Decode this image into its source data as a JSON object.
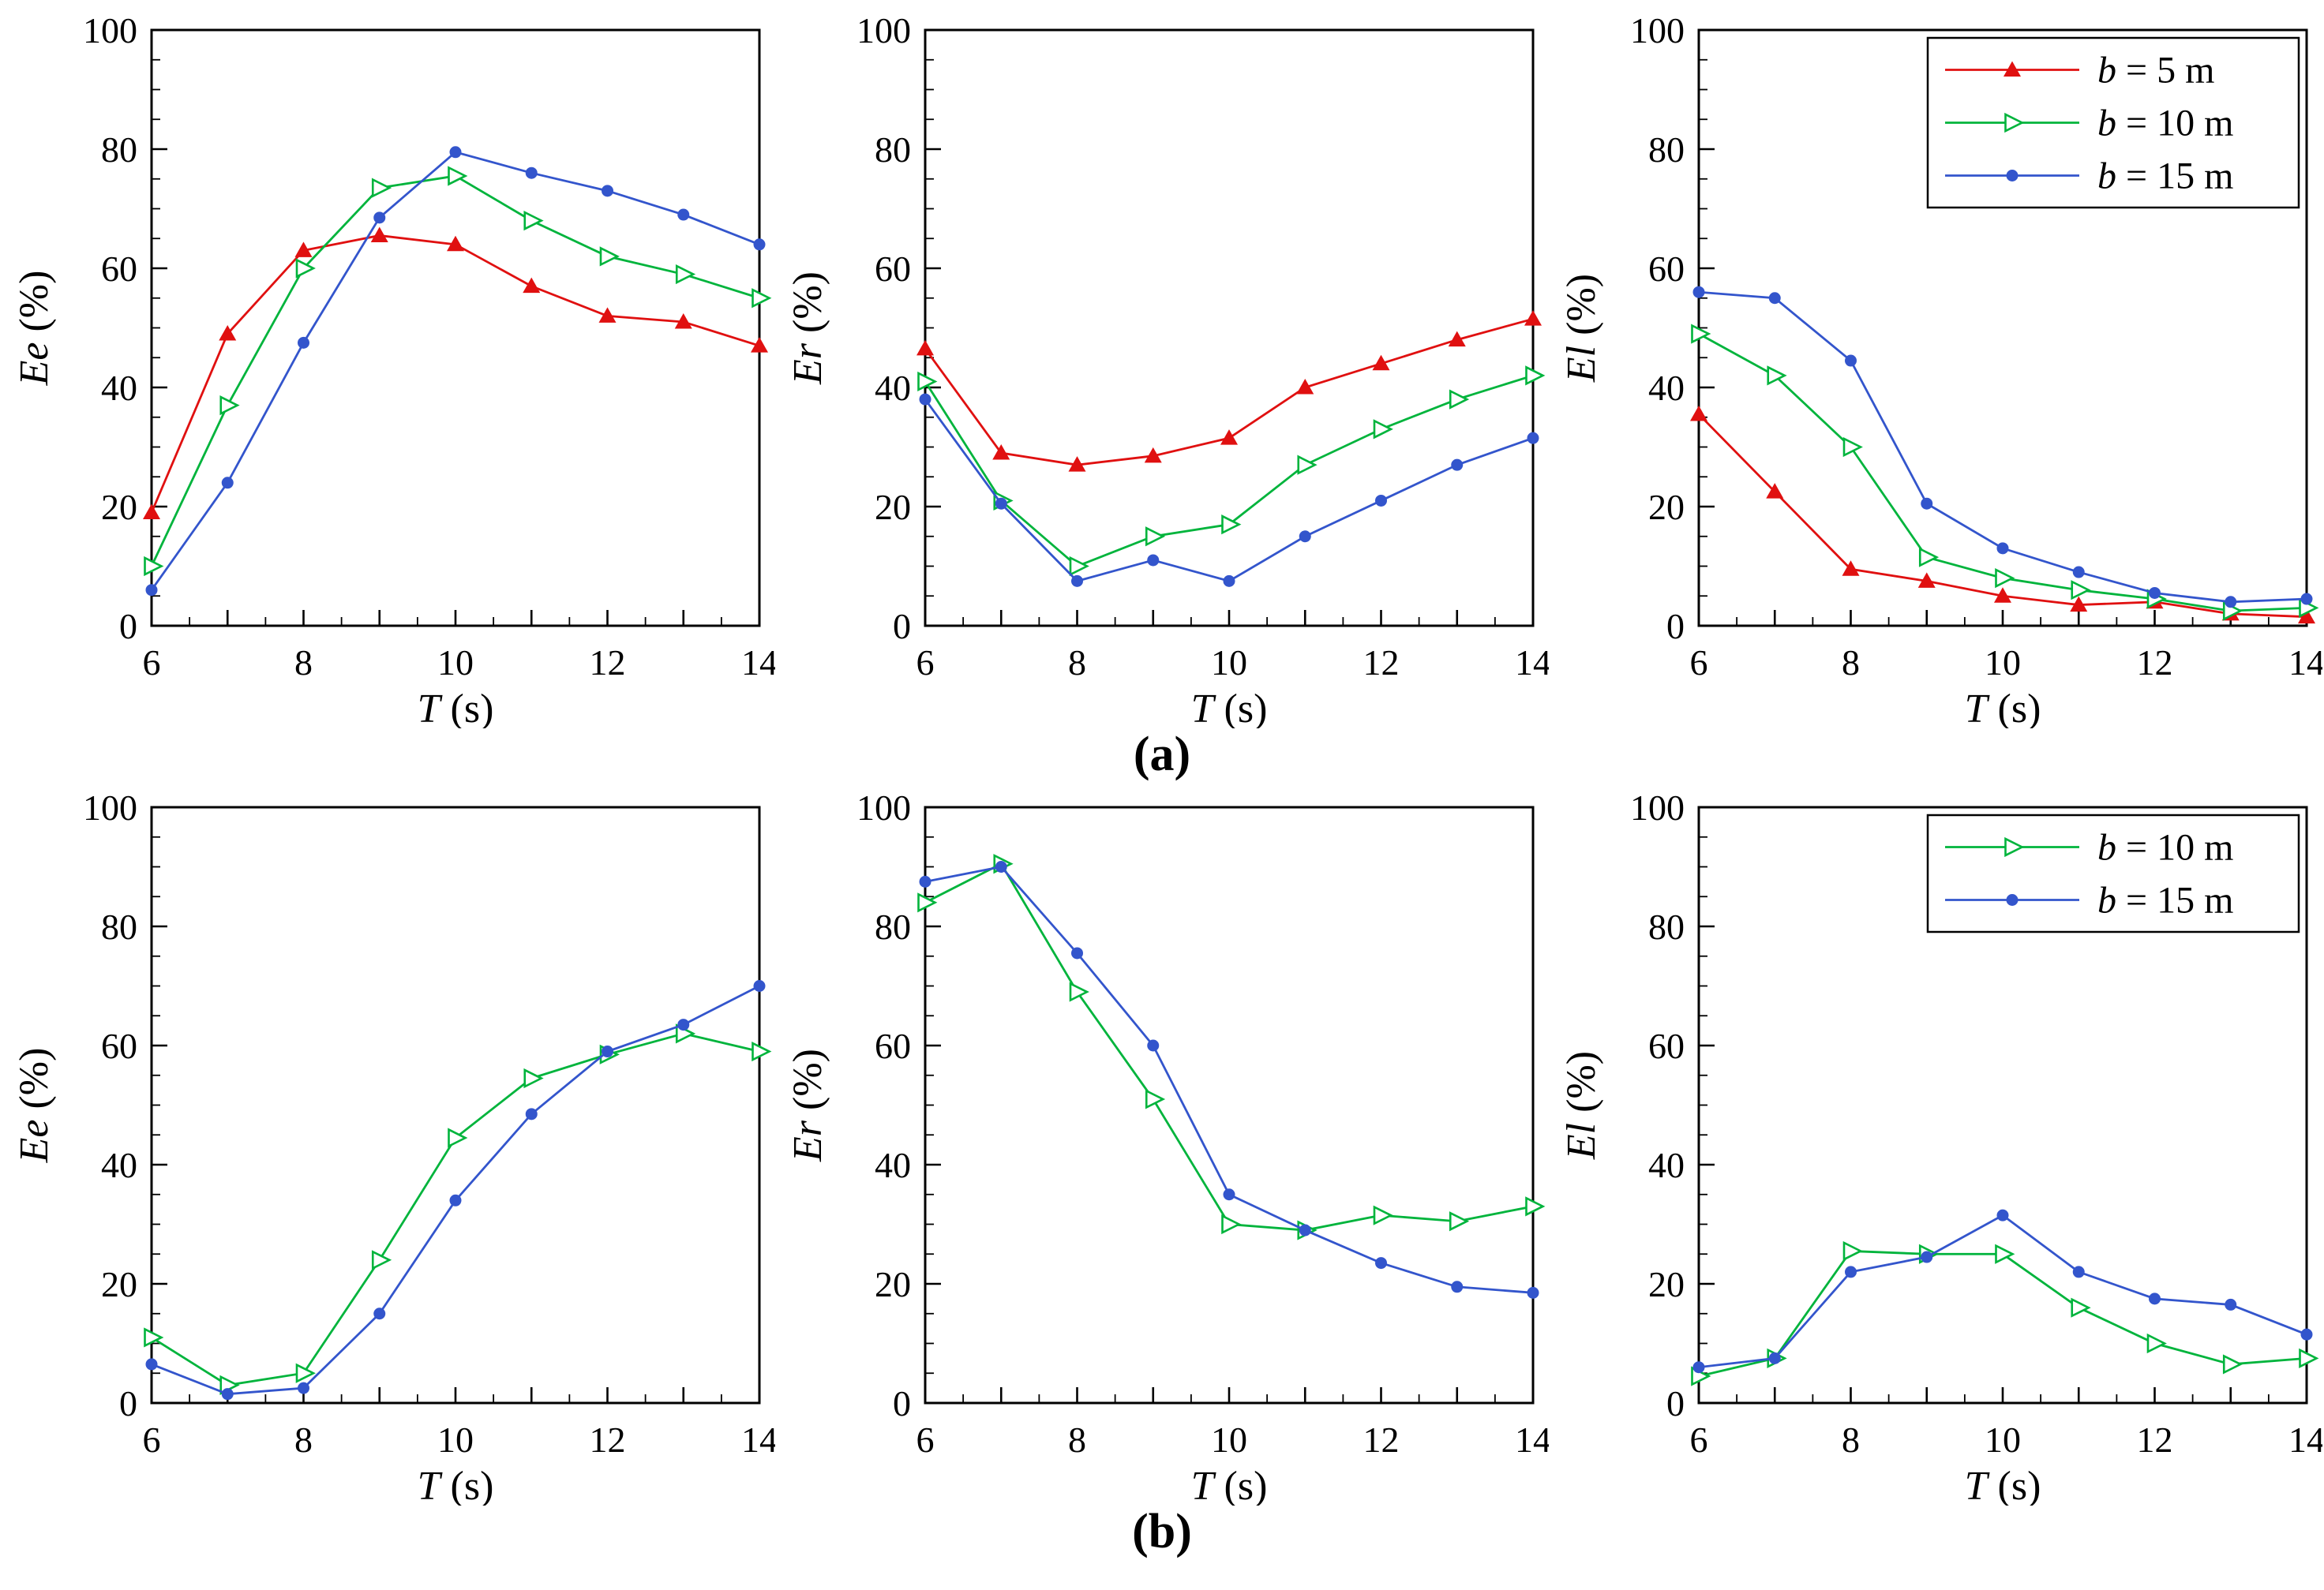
{
  "figure": {
    "panel_labels": {
      "a": "(a)",
      "b": "(b)"
    },
    "background": "#ffffff"
  },
  "axes": {
    "x": {
      "label": "T (s)",
      "label_var": "T",
      "label_unit": "(s)",
      "min": 6,
      "max": 14,
      "major_ticks": [
        6,
        8,
        10,
        12,
        14
      ],
      "minor_step": 0.5
    },
    "y": {
      "min": 0,
      "max": 100,
      "major_ticks": [
        0,
        20,
        40,
        60,
        80,
        100
      ],
      "minor_step": 5
    }
  },
  "styles": {
    "series_colors": {
      "b5": "#E01010",
      "b10": "#00B43C",
      "b15": "#3355CC"
    },
    "frame_color": "#000000"
  },
  "chart_data": [
    {
      "id": "a-ee",
      "panel": "a",
      "type": "line",
      "title": "",
      "xlabel": "T (s)",
      "ylabel": "Ee (%)",
      "ylabel_var": "Ee",
      "ylabel_unit": "(%)",
      "xlim": [
        6,
        14
      ],
      "ylim": [
        0,
        100
      ],
      "legend": false,
      "x": [
        6,
        7,
        8,
        9,
        10,
        11,
        12,
        13,
        14
      ],
      "series": [
        {
          "name": "b = 5 m",
          "color_key": "b5",
          "marker": "triangle-up-filled",
          "values": [
            19,
            49,
            63,
            65.5,
            64,
            57,
            52,
            51,
            47
          ]
        },
        {
          "name": "b = 10 m",
          "color_key": "b10",
          "marker": "triangle-right-open",
          "values": [
            10,
            37,
            60,
            73.5,
            75.5,
            68,
            62,
            59,
            55
          ]
        },
        {
          "name": "b = 15 m",
          "color_key": "b15",
          "marker": "circle-filled",
          "values": [
            6,
            24,
            47.5,
            68.5,
            79.5,
            76,
            73,
            69,
            64
          ]
        }
      ]
    },
    {
      "id": "a-er",
      "panel": "a",
      "type": "line",
      "title": "",
      "xlabel": "T (s)",
      "ylabel": "Er (%)",
      "ylabel_var": "Er",
      "ylabel_unit": "(%)",
      "xlim": [
        6,
        14
      ],
      "ylim": [
        0,
        100
      ],
      "legend": false,
      "x": [
        6,
        7,
        8,
        9,
        10,
        11,
        12,
        13,
        14
      ],
      "series": [
        {
          "name": "b = 5 m",
          "color_key": "b5",
          "marker": "triangle-up-filled",
          "values": [
            46.5,
            29,
            27,
            28.5,
            31.5,
            40,
            44,
            48,
            51.5
          ]
        },
        {
          "name": "b = 10 m",
          "color_key": "b10",
          "marker": "triangle-right-open",
          "values": [
            41,
            21,
            10,
            15,
            17,
            27,
            33,
            38,
            42
          ]
        },
        {
          "name": "b = 15 m",
          "color_key": "b15",
          "marker": "circle-filled",
          "values": [
            38,
            20.5,
            7.5,
            11,
            7.5,
            15,
            21,
            27,
            31.5
          ]
        }
      ]
    },
    {
      "id": "a-el",
      "panel": "a",
      "type": "line",
      "title": "",
      "xlabel": "T (s)",
      "ylabel": "El (%)",
      "ylabel_var": "El",
      "ylabel_unit": "(%)",
      "xlim": [
        6,
        14
      ],
      "ylim": [
        0,
        100
      ],
      "legend": true,
      "legend_position": "top-right",
      "x": [
        6,
        7,
        8,
        9,
        10,
        11,
        12,
        13,
        14
      ],
      "series": [
        {
          "name": "b = 5 m",
          "color_key": "b5",
          "marker": "triangle-up-filled",
          "values": [
            35.5,
            22.5,
            9.5,
            7.5,
            5,
            3.5,
            4,
            2,
            1.5
          ]
        },
        {
          "name": "b = 10 m",
          "color_key": "b10",
          "marker": "triangle-right-open",
          "values": [
            49,
            42,
            30,
            11.5,
            8,
            6,
            4.5,
            2.5,
            3
          ]
        },
        {
          "name": "b = 15 m",
          "color_key": "b15",
          "marker": "circle-filled",
          "values": [
            56,
            55,
            44.5,
            20.5,
            13,
            9,
            5.5,
            4,
            4.5
          ]
        }
      ]
    },
    {
      "id": "b-ee",
      "panel": "b",
      "type": "line",
      "title": "",
      "xlabel": "T (s)",
      "ylabel": "Ee (%)",
      "ylabel_var": "Ee",
      "ylabel_unit": "(%)",
      "xlim": [
        6,
        14
      ],
      "ylim": [
        0,
        100
      ],
      "legend": false,
      "x": [
        6,
        7,
        8,
        9,
        10,
        11,
        12,
        13,
        14
      ],
      "series": [
        {
          "name": "b = 10 m",
          "color_key": "b10",
          "marker": "triangle-right-open",
          "values": [
            11,
            3,
            5,
            24,
            44.5,
            54.5,
            58.5,
            62,
            59
          ]
        },
        {
          "name": "b = 15 m",
          "color_key": "b15",
          "marker": "circle-filled",
          "values": [
            6.5,
            1.5,
            2.5,
            15,
            34,
            48.5,
            59,
            63.5,
            70
          ]
        }
      ]
    },
    {
      "id": "b-er",
      "panel": "b",
      "type": "line",
      "title": "",
      "xlabel": "T (s)",
      "ylabel": "Er (%)",
      "ylabel_var": "Er",
      "ylabel_unit": "(%)",
      "xlim": [
        6,
        14
      ],
      "ylim": [
        0,
        100
      ],
      "legend": false,
      "x": [
        6,
        7,
        8,
        9,
        10,
        11,
        12,
        13,
        14
      ],
      "series": [
        {
          "name": "b = 10 m",
          "color_key": "b10",
          "marker": "triangle-right-open",
          "values": [
            84,
            90.5,
            69,
            51,
            30,
            29,
            31.5,
            30.5,
            33
          ]
        },
        {
          "name": "b = 15 m",
          "color_key": "b15",
          "marker": "circle-filled",
          "values": [
            87.5,
            90,
            75.5,
            60,
            35,
            29,
            23.5,
            19.5,
            18.5
          ]
        }
      ]
    },
    {
      "id": "b-el",
      "panel": "b",
      "type": "line",
      "title": "",
      "xlabel": "T (s)",
      "ylabel": "El (%)",
      "ylabel_var": "El",
      "ylabel_unit": "(%)",
      "xlim": [
        6,
        14
      ],
      "ylim": [
        0,
        100
      ],
      "legend": true,
      "legend_position": "top-right",
      "x": [
        6,
        7,
        8,
        9,
        10,
        11,
        12,
        13,
        14
      ],
      "series": [
        {
          "name": "b = 10 m",
          "color_key": "b10",
          "marker": "triangle-right-open",
          "values": [
            4.5,
            7.5,
            25.5,
            25,
            25,
            16,
            10,
            6.5,
            7.5
          ]
        },
        {
          "name": "b = 15 m",
          "color_key": "b15",
          "marker": "circle-filled",
          "values": [
            6,
            7.5,
            22,
            24.5,
            31.5,
            22,
            17.5,
            16.5,
            11.5
          ]
        }
      ]
    }
  ]
}
